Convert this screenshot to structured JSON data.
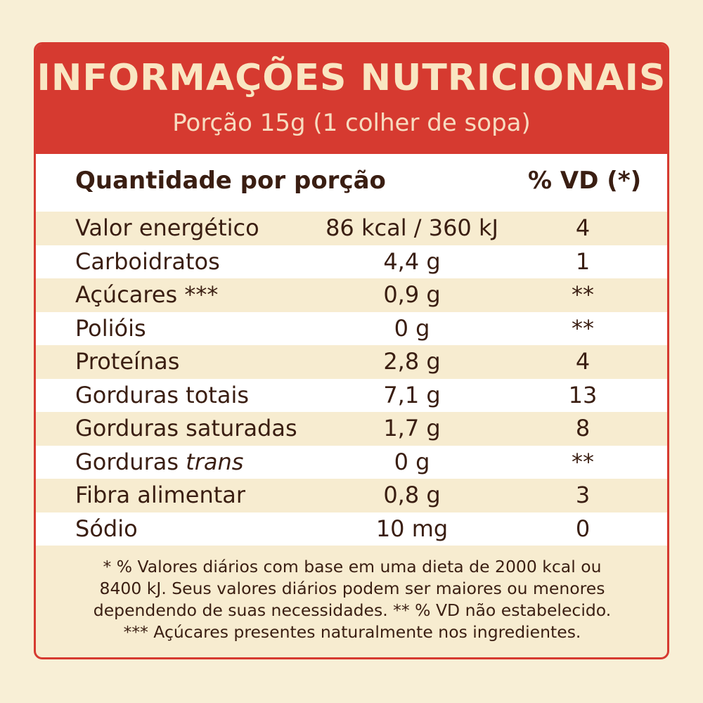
{
  "label": {
    "title": "INFORMAÇÕES NUTRICIONAIS",
    "serving": "Porção 15g (1 colher de sopa)",
    "header_left": "Quantidade por porção",
    "header_right": "% VD (*)",
    "rows": [
      {
        "name": "Valor energético",
        "qty": "86 kcal / 360 kJ",
        "vd": "4"
      },
      {
        "name": "Carboidratos",
        "qty": "4,4 g",
        "vd": "1"
      },
      {
        "name": "Açúcares ***",
        "qty": "0,9 g",
        "vd": "**"
      },
      {
        "name": "Polióis",
        "qty": "0 g",
        "vd": "**"
      },
      {
        "name": "Proteínas",
        "qty": "2,8 g",
        "vd": "4"
      },
      {
        "name": "Gorduras totais",
        "qty": "7,1 g",
        "vd": "13"
      },
      {
        "name": "Gorduras saturadas",
        "qty": "1,7 g",
        "vd": "8"
      },
      {
        "name": "Gorduras",
        "name_italic": "trans",
        "qty": "0 g",
        "vd": "**"
      },
      {
        "name": "Fibra alimentar",
        "qty": "0,8 g",
        "vd": "3"
      },
      {
        "name": "Sódio",
        "qty": "10 mg",
        "vd": "0"
      }
    ],
    "footnote_lines": [
      "* % Valores diários com base em uma dieta de 2000 kcal ou",
      "8400 kJ. Seus valores diários podem ser maiores ou menores",
      "dependendo de suas necessidades. ** % VD não estabelecido.",
      "*** Açúcares presentes naturalmente nos ingredientes."
    ],
    "colors": {
      "header_red": "#d63a30",
      "title_text": "#f9e6c2",
      "body_text": "#3a1e12",
      "cream_row": "#f7ecd0",
      "white_row": "#ffffff"
    }
  }
}
